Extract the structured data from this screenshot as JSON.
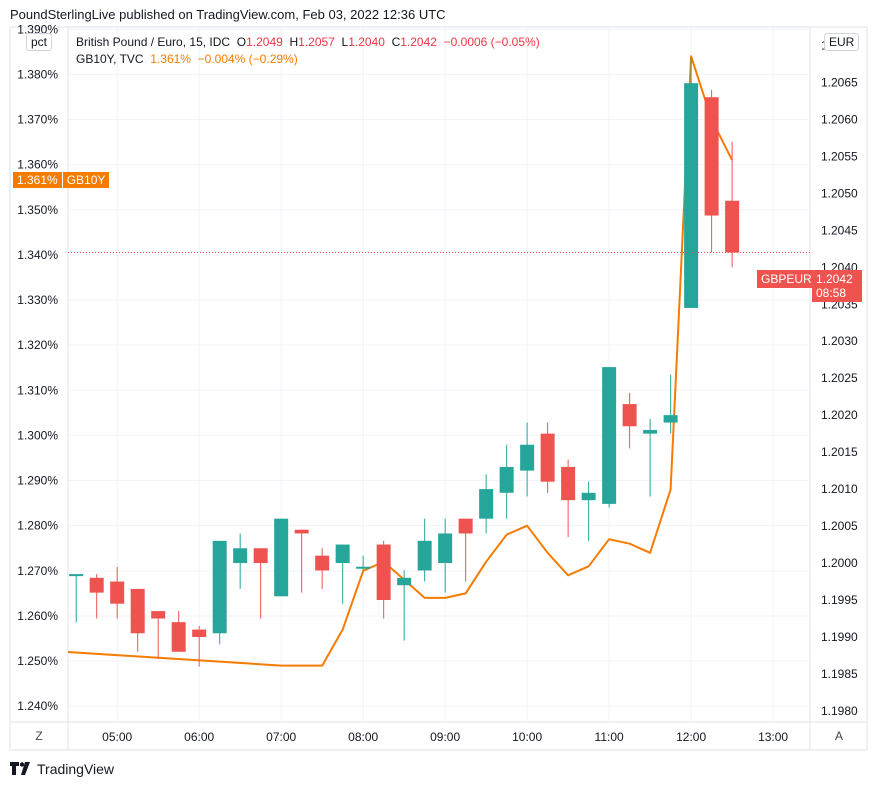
{
  "header": {
    "text": "PoundSterlingLive published on TradingView.com, Feb 03, 2022 12:36 UTC"
  },
  "footer": {
    "brand": "TradingView"
  },
  "legend": {
    "main": {
      "symbol": "British Pound / Euro, 15, IDC",
      "o_label": "O",
      "o": "1.2049",
      "h_label": "H",
      "h": "1.2057",
      "l_label": "L",
      "l": "1.2040",
      "c_label": "C",
      "c": "1.2042",
      "change": "−0.0006 (−0.05%)"
    },
    "overlay": {
      "symbol": "GB10Y, TVC",
      "value": "1.361%",
      "change": "−0.004% (−0.29%)"
    }
  },
  "left_unit": "pct",
  "right_unit": "EUR",
  "buttons": {
    "z": "Z",
    "a": "A"
  },
  "tags": {
    "gb10y_value": "1.361%",
    "gb10y_name": "GB10Y",
    "gbpeur_name": "GBPEUR",
    "gbpeur_value": "1.2042",
    "gbpeur_timer": "08:58"
  },
  "colors": {
    "up": "#26a69a",
    "down": "#ef5350",
    "yield_line": "#f57c00",
    "grid": "#f0f3fa"
  },
  "chart_data": {
    "type": "candlestick",
    "x_ticks": [
      "05:00",
      "06:00",
      "07:00",
      "08:00",
      "09:00",
      "10:00",
      "11:00",
      "12:00",
      "13:00"
    ],
    "x_tick_hours": [
      5,
      6,
      7,
      8,
      9,
      10,
      11,
      12,
      13
    ],
    "x_range": [
      4.4,
      13.45
    ],
    "right_axis": {
      "unit": "EUR",
      "ticks": [
        "1.2070",
        "1.2065",
        "1.2060",
        "1.2055",
        "1.2050",
        "1.2045",
        "1.2040",
        "1.2035",
        "1.2030",
        "1.2025",
        "1.2020",
        "1.2015",
        "1.2010",
        "1.2005",
        "1.2000",
        "1.1995",
        "1.1990",
        "1.1985",
        "1.1980"
      ],
      "range": [
        1.19785,
        1.20725
      ]
    },
    "left_axis": {
      "unit": "pct",
      "ticks": [
        "1.390%",
        "1.380%",
        "1.370%",
        "1.360%",
        "1.350%",
        "1.340%",
        "1.330%",
        "1.320%",
        "1.310%",
        "1.300%",
        "1.290%",
        "1.280%",
        "1.270%",
        "1.260%",
        "1.250%",
        "1.240%"
      ],
      "range": [
        1.2365,
        1.3905
      ]
    },
    "candles_gbpeur": [
      {
        "t": 4.5,
        "o": 1.19985,
        "h": 1.19985,
        "l": 1.1992,
        "c": 1.19985
      },
      {
        "t": 4.75,
        "o": 1.1998,
        "h": 1.19985,
        "l": 1.19925,
        "c": 1.1996
      },
      {
        "t": 5.0,
        "o": 1.19975,
        "h": 1.19995,
        "l": 1.19925,
        "c": 1.19945
      },
      {
        "t": 5.25,
        "o": 1.19965,
        "h": 1.19965,
        "l": 1.1988,
        "c": 1.19905
      },
      {
        "t": 5.5,
        "o": 1.19935,
        "h": 1.19935,
        "l": 1.1987,
        "c": 1.19925
      },
      {
        "t": 5.75,
        "o": 1.1992,
        "h": 1.19935,
        "l": 1.1988,
        "c": 1.1988
      },
      {
        "t": 6.0,
        "o": 1.1991,
        "h": 1.19915,
        "l": 1.1986,
        "c": 1.199
      },
      {
        "t": 6.25,
        "o": 1.19905,
        "h": 1.2003,
        "l": 1.1989,
        "c": 1.2003
      },
      {
        "t": 6.5,
        "o": 1.2,
        "h": 1.2004,
        "l": 1.19965,
        "c": 1.2002
      },
      {
        "t": 6.75,
        "o": 1.2002,
        "h": 1.2002,
        "l": 1.19925,
        "c": 1.2
      },
      {
        "t": 7.0,
        "o": 1.19955,
        "h": 1.2006,
        "l": 1.19955,
        "c": 1.2006
      },
      {
        "t": 7.25,
        "o": 1.20045,
        "h": 1.20045,
        "l": 1.1996,
        "c": 1.2004
      },
      {
        "t": 7.5,
        "o": 1.2001,
        "h": 1.2002,
        "l": 1.19965,
        "c": 1.1999
      },
      {
        "t": 7.75,
        "o": 1.2,
        "h": 1.20025,
        "l": 1.19945,
        "c": 1.20025
      },
      {
        "t": 8.0,
        "o": 1.19995,
        "h": 1.2001,
        "l": 1.1999,
        "c": 1.19995
      },
      {
        "t": 8.25,
        "o": 1.20025,
        "h": 1.2003,
        "l": 1.19925,
        "c": 1.1995
      },
      {
        "t": 8.5,
        "o": 1.1997,
        "h": 1.1999,
        "l": 1.19895,
        "c": 1.1998
      },
      {
        "t": 8.75,
        "o": 1.1999,
        "h": 1.2006,
        "l": 1.19975,
        "c": 1.2003
      },
      {
        "t": 9.0,
        "o": 1.2,
        "h": 1.2006,
        "l": 1.1996,
        "c": 1.2004
      },
      {
        "t": 9.25,
        "o": 1.2006,
        "h": 1.2006,
        "l": 1.19975,
        "c": 1.2004
      },
      {
        "t": 9.5,
        "o": 1.2006,
        "h": 1.2012,
        "l": 1.2004,
        "c": 1.201
      },
      {
        "t": 9.75,
        "o": 1.20095,
        "h": 1.2016,
        "l": 1.2006,
        "c": 1.2013
      },
      {
        "t": 10.0,
        "o": 1.20125,
        "h": 1.2019,
        "l": 1.2009,
        "c": 1.2016
      },
      {
        "t": 10.25,
        "o": 1.20175,
        "h": 1.2019,
        "l": 1.20095,
        "c": 1.2011
      },
      {
        "t": 10.5,
        "o": 1.2013,
        "h": 1.2014,
        "l": 1.20035,
        "c": 1.20085
      },
      {
        "t": 10.75,
        "o": 1.20085,
        "h": 1.2011,
        "l": 1.2003,
        "c": 1.20095
      },
      {
        "t": 11.0,
        "o": 1.2008,
        "h": 1.20265,
        "l": 1.20075,
        "c": 1.20265
      },
      {
        "t": 11.25,
        "o": 1.20215,
        "h": 1.2023,
        "l": 1.20155,
        "c": 1.20185
      },
      {
        "t": 11.5,
        "o": 1.20175,
        "h": 1.20195,
        "l": 1.2009,
        "c": 1.2018
      },
      {
        "t": 11.75,
        "o": 1.2019,
        "h": 1.20255,
        "l": 1.20175,
        "c": 1.202
      },
      {
        "t": 12.0,
        "o": 1.20345,
        "h": 1.20683,
        "l": 1.20345,
        "c": 1.20649
      },
      {
        "t": 12.25,
        "o": 1.2063,
        "h": 1.2064,
        "l": 1.2042,
        "c": 1.2047
      },
      {
        "t": 12.5,
        "o": 1.2049,
        "h": 1.2057,
        "l": 1.204,
        "c": 1.2042
      }
    ],
    "gb10y_line": {
      "name": "GB10Y",
      "points": [
        [
          4.4,
          1.252
        ],
        [
          7.0,
          1.249
        ],
        [
          7.5,
          1.249
        ],
        [
          7.75,
          1.257
        ],
        [
          8.0,
          1.27
        ],
        [
          8.25,
          1.272
        ],
        [
          8.5,
          1.268
        ],
        [
          8.75,
          1.264
        ],
        [
          9.0,
          1.264
        ],
        [
          9.25,
          1.265
        ],
        [
          9.5,
          1.272
        ],
        [
          9.75,
          1.278
        ],
        [
          10.0,
          1.28
        ],
        [
          10.25,
          1.274
        ],
        [
          10.5,
          1.269
        ],
        [
          10.75,
          1.271
        ],
        [
          11.0,
          1.277
        ],
        [
          11.25,
          1.276
        ],
        [
          11.5,
          1.274
        ],
        [
          11.75,
          1.288
        ],
        [
          12.0,
          1.384
        ],
        [
          12.25,
          1.37
        ],
        [
          12.5,
          1.361
        ]
      ]
    }
  }
}
